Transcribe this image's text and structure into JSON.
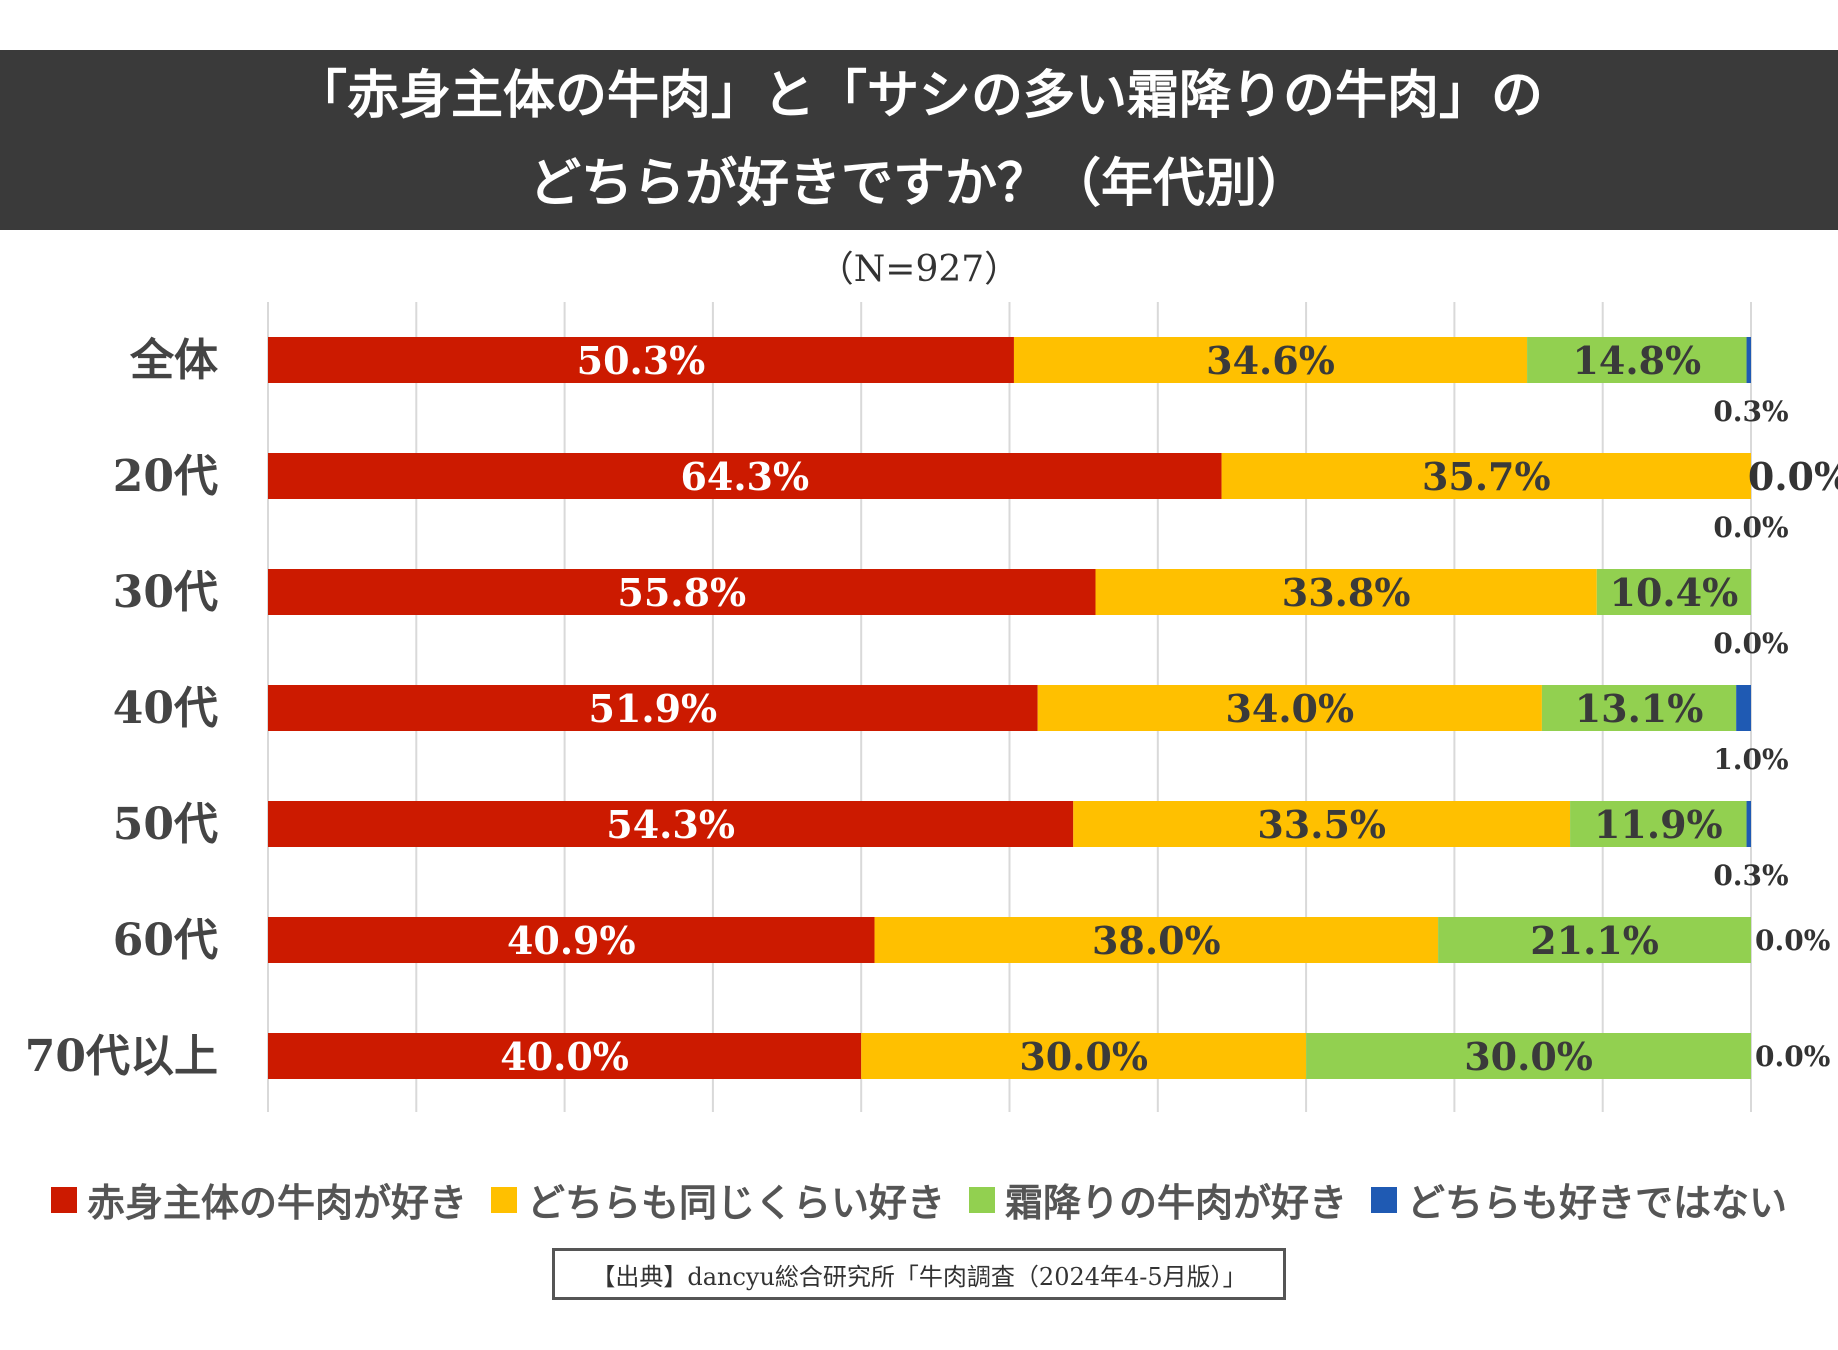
{
  "title": {
    "line1": "「赤身主体の牛肉」と「サシの多い霜降りの牛肉」の",
    "line2": "どちらが好きですか？（年代別）"
  },
  "subtitle": "（N=927）",
  "source": "【出典】dancyu総合研究所「牛肉調査（2024年4-5月版）」",
  "colors": {
    "red": "#cc1a00",
    "yellow": "#ffc000",
    "green": "#92d050",
    "blue": "#1f5ab3",
    "grid": "#d9d9d9",
    "banner": "#3a3a3a"
  },
  "legend": [
    {
      "label": "赤身主体の牛肉が好き",
      "color": "#cc1a00"
    },
    {
      "label": "どちらも同じくらい好き",
      "color": "#ffc000"
    },
    {
      "label": "霜降りの牛肉が好き",
      "color": "#92d050"
    },
    {
      "label": "どちらも好きではない",
      "color": "#1f5ab3"
    }
  ],
  "chart_data": {
    "type": "bar",
    "orientation": "horizontal",
    "stacked": "100%",
    "title": "「赤身主体の牛肉」と「サシの多い霜降りの牛肉」の どちらが好きですか？（年代別）",
    "categories": [
      "全体",
      "20代",
      "30代",
      "40代",
      "50代",
      "60代",
      "70代以上"
    ],
    "xlim": [
      0,
      100
    ],
    "grid": true,
    "legend_position": "bottom",
    "series": [
      {
        "name": "赤身主体の牛肉が好き",
        "color": "#cc1a00",
        "values": [
          50.3,
          64.3,
          55.8,
          51.9,
          54.3,
          40.9,
          40.0
        ],
        "labels": [
          "50.3%",
          "64.3%",
          "55.8%",
          "51.9%",
          "54.3%",
          "40.9%",
          "40.0%"
        ]
      },
      {
        "name": "どちらも同じくらい好き",
        "color": "#ffc000",
        "values": [
          34.6,
          35.7,
          33.8,
          34.0,
          33.5,
          38.0,
          30.0
        ],
        "labels": [
          "34.6%",
          "35.7%",
          "33.8%",
          "34.0%",
          "33.5%",
          "38.0%",
          "30.0%"
        ]
      },
      {
        "name": "霜降りの牛肉が好き",
        "color": "#92d050",
        "values": [
          14.8,
          0.0,
          10.4,
          13.1,
          11.9,
          21.1,
          30.0
        ],
        "labels": [
          "14.8%",
          "0.0%",
          "10.4%",
          "13.1%",
          "11.9%",
          "21.1%",
          "30.0%"
        ]
      },
      {
        "name": "どちらも好きではない",
        "color": "#1f5ab3",
        "values": [
          0.3,
          0.0,
          0.0,
          1.0,
          0.3,
          0.0,
          0.0
        ],
        "labels": [
          "0.3%",
          "0.0%",
          "0.0%",
          "1.0%",
          "0.3%",
          "0.0%",
          "0.0%"
        ]
      }
    ]
  }
}
